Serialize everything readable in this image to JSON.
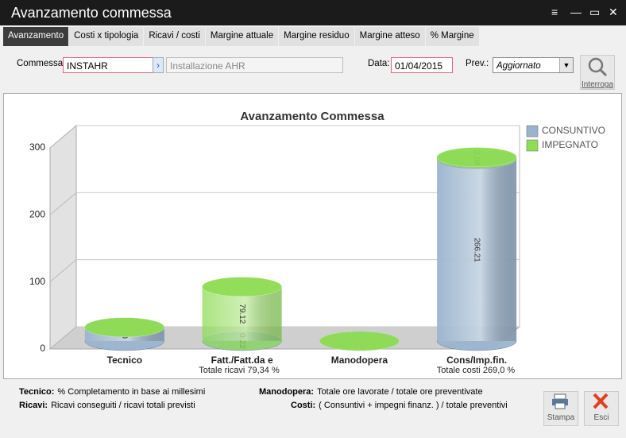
{
  "window": {
    "title": "Avanzamento commessa"
  },
  "tabs": [
    "Avanzamento",
    "Costi x tipologia",
    "Ricavi / costi",
    "Margine attuale",
    "Margine residuo",
    "Margine atteso",
    "% Margine"
  ],
  "form": {
    "commessa_label": "Commessa:",
    "commessa": "INSTAHR",
    "commessa_desc": "Installazione AHR",
    "data_label": "Data:",
    "data": "01/04/2015",
    "prev_label": "Prev.:",
    "prev": "Aggiornato",
    "interroga": "Interroga"
  },
  "chart_data": {
    "type": "bar",
    "stacked": true,
    "title": "Avanzamento Commessa",
    "categories": [
      "Tecnico",
      "Fatt./Fatt.da e",
      "Manodopera",
      "Cons/Imp.fin."
    ],
    "series": [
      {
        "name": "CONSUNTIVO",
        "color": "#9bb4ce",
        "values": [
          20,
          0.22,
          0,
          266.21
        ]
      },
      {
        "name": "IMPEGNATO",
        "color": "#8fdc55",
        "values": [
          0,
          79.12,
          0,
          2.84
        ]
      }
    ],
    "ylim": [
      0,
      300
    ],
    "yticks": [
      0,
      100,
      200,
      300
    ],
    "grid": true,
    "legend": "top-right",
    "annotations": [
      "Totale ricavi 79,34 %",
      "Totale costi 269,0 %"
    ]
  },
  "notes": [
    {
      "term": "Tecnico:",
      "text": "% Completamento in base ai millesimi"
    },
    {
      "term": "Ricavi:",
      "text": "Ricavi conseguiti / ricavi totali previsti"
    },
    {
      "term": "Manodopera:",
      "text": "Totale ore lavorate / totale ore preventivate"
    },
    {
      "term": "Costi:",
      "text": "( Consuntivi + impegni finanz. ) / totale preventivi"
    }
  ],
  "buttons": [
    "Stampa",
    "Esci"
  ]
}
